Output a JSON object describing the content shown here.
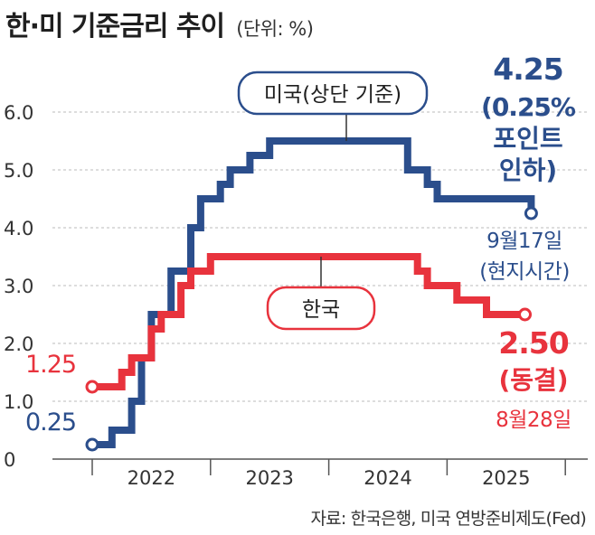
{
  "title": "한·미 기준금리 추이",
  "unit": "(단위: %)",
  "source": "자료: 한국은행, 미국 연방준비제도(Fed)",
  "colors": {
    "us": "#2b4e8c",
    "kr": "#e8333d",
    "axis": "#555555",
    "grid": "#bbbbbb"
  },
  "chart_data": {
    "type": "line",
    "step": true,
    "ylim": [
      0,
      6.0
    ],
    "yticks": [
      "0",
      "1.0",
      "2.0",
      "3.0",
      "4.0",
      "5.0",
      "6.0"
    ],
    "xticks": [
      "2022",
      "2023",
      "2024",
      "2025"
    ],
    "grid": true,
    "series": [
      {
        "name": "미국(상단 기준)",
        "x": [
          "2022-01",
          "2022-03",
          "2022-05",
          "2022-06",
          "2022-07",
          "2022-09",
          "2022-11",
          "2022-12",
          "2023-02",
          "2023-03",
          "2023-05",
          "2023-07",
          "2024-09",
          "2024-11",
          "2024-12",
          "2025-09-17"
        ],
        "values": [
          0.25,
          0.5,
          1.0,
          1.75,
          2.5,
          3.25,
          4.0,
          4.5,
          4.75,
          5.0,
          5.25,
          5.5,
          5.0,
          4.75,
          4.5,
          4.25
        ],
        "end_value": "4.25",
        "end_note": "(0.25%",
        "end_note2": "포인트",
        "end_note3": "인하)",
        "end_date": "9월17일",
        "end_date2": "(현지시간)",
        "start_value": "0.25"
      },
      {
        "name": "한국",
        "x": [
          "2022-01",
          "2022-04",
          "2022-05",
          "2022-07",
          "2022-08",
          "2022-10",
          "2022-11",
          "2023-01",
          "2024-10",
          "2024-11",
          "2025-02",
          "2025-05",
          "2025-08-28"
        ],
        "values": [
          1.25,
          1.5,
          1.75,
          2.25,
          2.5,
          3.0,
          3.25,
          3.5,
          3.25,
          3.0,
          2.75,
          2.5,
          2.5
        ],
        "end_value": "2.50",
        "end_note": "(동결)",
        "end_date": "8월28일",
        "start_value": "1.25"
      }
    ]
  }
}
